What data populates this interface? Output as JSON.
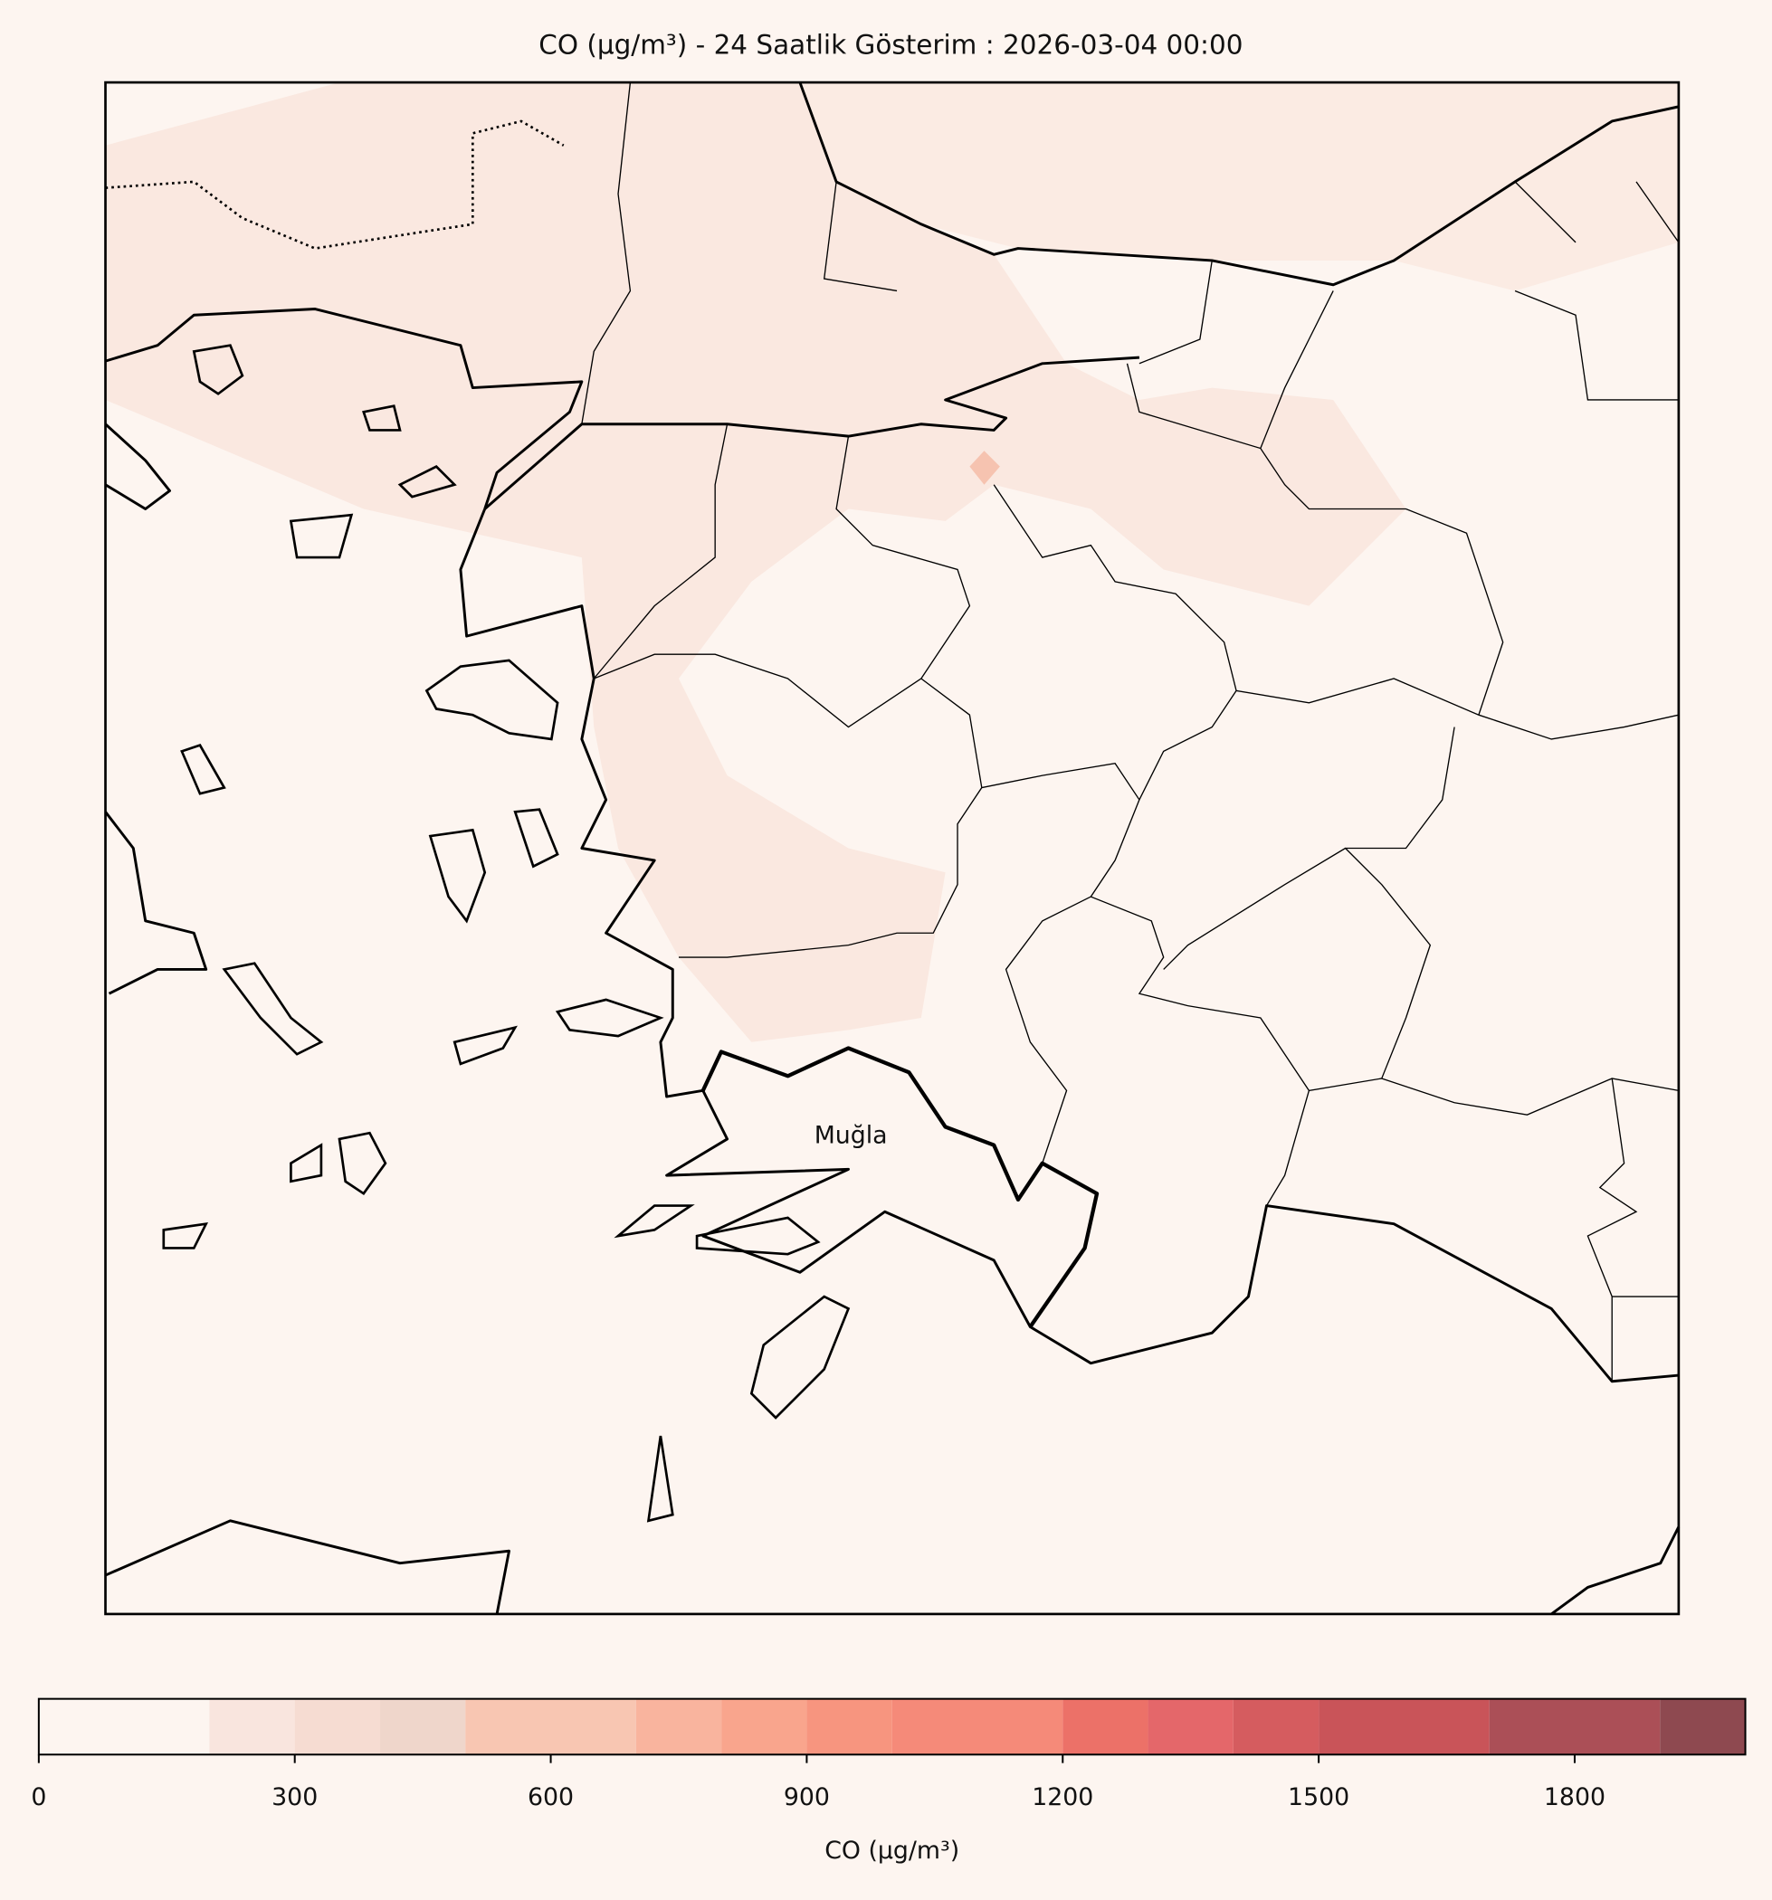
{
  "title": "CO (µg/m³) - 24 Saatlik Gösterim : 2026-03-04 00:00",
  "map": {
    "label": "Muğla"
  },
  "colorbar": {
    "label": "CO (µg/m³)",
    "levels": [
      0,
      200,
      300,
      400,
      500,
      700,
      800,
      900,
      1000,
      1200,
      1300,
      1400,
      1500,
      1700,
      1900,
      2000
    ],
    "colors": [
      "#fdf5f0",
      "#f9e5de",
      "#f6dcd2",
      "#efd6cb",
      "#f8c6b2",
      "#f9b49e",
      "#f9a58d",
      "#f7957f",
      "#f58a79",
      "#ec7168",
      "#e4676a",
      "#d55c5f",
      "#c95459",
      "#ab4f57",
      "#8e4950"
    ],
    "ticks": [
      0,
      300,
      600,
      900,
      1200,
      1500,
      1800
    ]
  }
}
